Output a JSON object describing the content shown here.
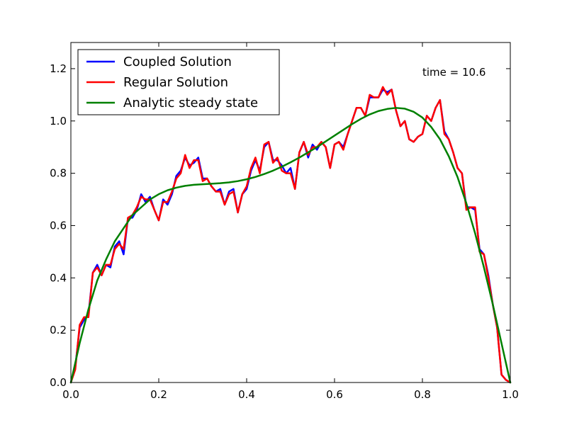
{
  "chart_data": {
    "type": "line",
    "title": "",
    "xlabel": "",
    "ylabel": "",
    "xlim": [
      0,
      1
    ],
    "ylim": [
      0,
      1.3
    ],
    "grid": false,
    "legend_position": "top-left",
    "annotation": "time = 10.6",
    "x_ticks": [
      {
        "value": 0.0,
        "label": "0.0"
      },
      {
        "value": 0.2,
        "label": "0.2"
      },
      {
        "value": 0.4,
        "label": "0.4"
      },
      {
        "value": 0.6,
        "label": "0.6"
      },
      {
        "value": 0.8,
        "label": "0.8"
      },
      {
        "value": 1.0,
        "label": "1.0"
      }
    ],
    "y_ticks": [
      {
        "value": 0.0,
        "label": "0.0"
      },
      {
        "value": 0.2,
        "label": "0.2"
      },
      {
        "value": 0.4,
        "label": "0.4"
      },
      {
        "value": 0.6,
        "label": "0.6"
      },
      {
        "value": 0.8,
        "label": "0.8"
      },
      {
        "value": 1.0,
        "label": "1.0"
      },
      {
        "value": 1.2,
        "label": "1.2"
      }
    ],
    "series": [
      {
        "name": "Coupled Solution",
        "color": "#0000ff",
        "x": [
          0,
          0.01,
          0.02,
          0.03,
          0.04,
          0.05,
          0.06,
          0.07,
          0.08,
          0.09,
          0.1,
          0.11,
          0.12,
          0.13,
          0.14,
          0.15,
          0.16,
          0.17,
          0.18,
          0.19,
          0.2,
          0.21,
          0.22,
          0.23,
          0.24,
          0.25,
          0.26,
          0.27,
          0.28,
          0.29,
          0.3,
          0.31,
          0.32,
          0.33,
          0.34,
          0.35,
          0.36,
          0.37,
          0.38,
          0.39,
          0.4,
          0.41,
          0.42,
          0.43,
          0.44,
          0.45,
          0.46,
          0.47,
          0.48,
          0.49,
          0.5,
          0.51,
          0.52,
          0.53,
          0.54,
          0.55,
          0.56,
          0.57,
          0.58,
          0.59,
          0.6,
          0.61,
          0.62,
          0.63,
          0.64,
          0.65,
          0.66,
          0.67,
          0.68,
          0.69,
          0.7,
          0.71,
          0.72,
          0.73,
          0.74,
          0.75,
          0.76,
          0.77,
          0.78,
          0.79,
          0.8,
          0.81,
          0.82,
          0.83,
          0.84,
          0.85,
          0.86,
          0.87,
          0.88,
          0.89,
          0.9,
          0.91,
          0.92,
          0.93,
          0.94,
          0.95,
          0.96,
          0.97,
          0.98,
          0.99,
          1.0
        ],
        "y": [
          0.0,
          0.06,
          0.21,
          0.24,
          0.26,
          0.42,
          0.45,
          0.41,
          0.45,
          0.44,
          0.52,
          0.54,
          0.49,
          0.63,
          0.63,
          0.66,
          0.72,
          0.69,
          0.71,
          0.66,
          0.62,
          0.7,
          0.68,
          0.72,
          0.79,
          0.81,
          0.86,
          0.83,
          0.84,
          0.86,
          0.78,
          0.78,
          0.75,
          0.73,
          0.74,
          0.68,
          0.73,
          0.74,
          0.65,
          0.72,
          0.74,
          0.81,
          0.85,
          0.81,
          0.9,
          0.92,
          0.85,
          0.85,
          0.83,
          0.8,
          0.82,
          0.74,
          0.88,
          0.92,
          0.86,
          0.91,
          0.89,
          0.92,
          0.9,
          0.82,
          0.91,
          0.92,
          0.9,
          0.95,
          1.0,
          1.05,
          1.05,
          1.02,
          1.09,
          1.09,
          1.09,
          1.12,
          1.11,
          1.12,
          1.04,
          0.98,
          1.0,
          0.93,
          0.92,
          0.94,
          0.95,
          1.02,
          1.0,
          1.05,
          1.08,
          0.96,
          0.93,
          0.88,
          0.82,
          0.8,
          0.67,
          0.67,
          0.66,
          0.51,
          0.49,
          0.41,
          0.3,
          0.21,
          0.03,
          0.01,
          0.0
        ]
      },
      {
        "name": "Regular Solution",
        "color": "#ff0000",
        "x": [
          0,
          0.01,
          0.02,
          0.03,
          0.04,
          0.05,
          0.06,
          0.07,
          0.08,
          0.09,
          0.1,
          0.11,
          0.12,
          0.13,
          0.14,
          0.15,
          0.16,
          0.17,
          0.18,
          0.19,
          0.2,
          0.21,
          0.22,
          0.23,
          0.24,
          0.25,
          0.26,
          0.27,
          0.28,
          0.29,
          0.3,
          0.31,
          0.32,
          0.33,
          0.34,
          0.35,
          0.36,
          0.37,
          0.38,
          0.39,
          0.4,
          0.41,
          0.42,
          0.43,
          0.44,
          0.45,
          0.46,
          0.47,
          0.48,
          0.49,
          0.5,
          0.51,
          0.52,
          0.53,
          0.54,
          0.55,
          0.56,
          0.57,
          0.58,
          0.59,
          0.6,
          0.61,
          0.62,
          0.63,
          0.64,
          0.65,
          0.66,
          0.67,
          0.68,
          0.69,
          0.7,
          0.71,
          0.72,
          0.73,
          0.74,
          0.75,
          0.76,
          0.77,
          0.78,
          0.79,
          0.8,
          0.81,
          0.82,
          0.83,
          0.84,
          0.85,
          0.86,
          0.87,
          0.88,
          0.89,
          0.9,
          0.91,
          0.92,
          0.93,
          0.94,
          0.95,
          0.96,
          0.97,
          0.98,
          0.99,
          1.0
        ],
        "y": [
          0.0,
          0.05,
          0.22,
          0.25,
          0.25,
          0.42,
          0.44,
          0.41,
          0.45,
          0.45,
          0.51,
          0.53,
          0.51,
          0.63,
          0.64,
          0.67,
          0.71,
          0.7,
          0.7,
          0.66,
          0.62,
          0.69,
          0.69,
          0.73,
          0.78,
          0.8,
          0.87,
          0.82,
          0.85,
          0.85,
          0.77,
          0.78,
          0.75,
          0.73,
          0.73,
          0.68,
          0.72,
          0.73,
          0.65,
          0.72,
          0.75,
          0.82,
          0.86,
          0.8,
          0.91,
          0.92,
          0.84,
          0.86,
          0.81,
          0.8,
          0.8,
          0.74,
          0.88,
          0.92,
          0.87,
          0.9,
          0.9,
          0.92,
          0.9,
          0.82,
          0.91,
          0.92,
          0.89,
          0.95,
          1.0,
          1.05,
          1.05,
          1.02,
          1.1,
          1.09,
          1.09,
          1.13,
          1.1,
          1.12,
          1.04,
          0.98,
          1.0,
          0.93,
          0.92,
          0.94,
          0.95,
          1.02,
          1.0,
          1.05,
          1.08,
          0.95,
          0.93,
          0.88,
          0.82,
          0.8,
          0.66,
          0.67,
          0.67,
          0.5,
          0.49,
          0.4,
          0.3,
          0.21,
          0.03,
          0.01,
          0.0
        ]
      },
      {
        "name": "Analytic steady state",
        "color": "#008000",
        "x": [
          0,
          0.02,
          0.04,
          0.06,
          0.08,
          0.1,
          0.12,
          0.14,
          0.16,
          0.18,
          0.2,
          0.22,
          0.24,
          0.26,
          0.28,
          0.3,
          0.32,
          0.34,
          0.36,
          0.38,
          0.4,
          0.42,
          0.44,
          0.46,
          0.48,
          0.5,
          0.52,
          0.54,
          0.56,
          0.58,
          0.6,
          0.62,
          0.64,
          0.66,
          0.68,
          0.7,
          0.72,
          0.74,
          0.76,
          0.78,
          0.8,
          0.82,
          0.84,
          0.86,
          0.88,
          0.9,
          0.92,
          0.94,
          0.96,
          0.98,
          1.0
        ],
        "y": [
          0.0,
          0.15,
          0.28,
          0.39,
          0.47,
          0.54,
          0.59,
          0.64,
          0.67,
          0.7,
          0.72,
          0.735,
          0.745,
          0.752,
          0.756,
          0.758,
          0.76,
          0.762,
          0.765,
          0.77,
          0.777,
          0.786,
          0.797,
          0.81,
          0.825,
          0.842,
          0.86,
          0.88,
          0.9,
          0.922,
          0.944,
          0.966,
          0.988,
          1.008,
          1.025,
          1.038,
          1.046,
          1.05,
          1.047,
          1.035,
          1.013,
          0.977,
          0.93,
          0.865,
          0.785,
          0.685,
          0.57,
          0.44,
          0.3,
          0.15,
          0.0
        ]
      }
    ]
  }
}
